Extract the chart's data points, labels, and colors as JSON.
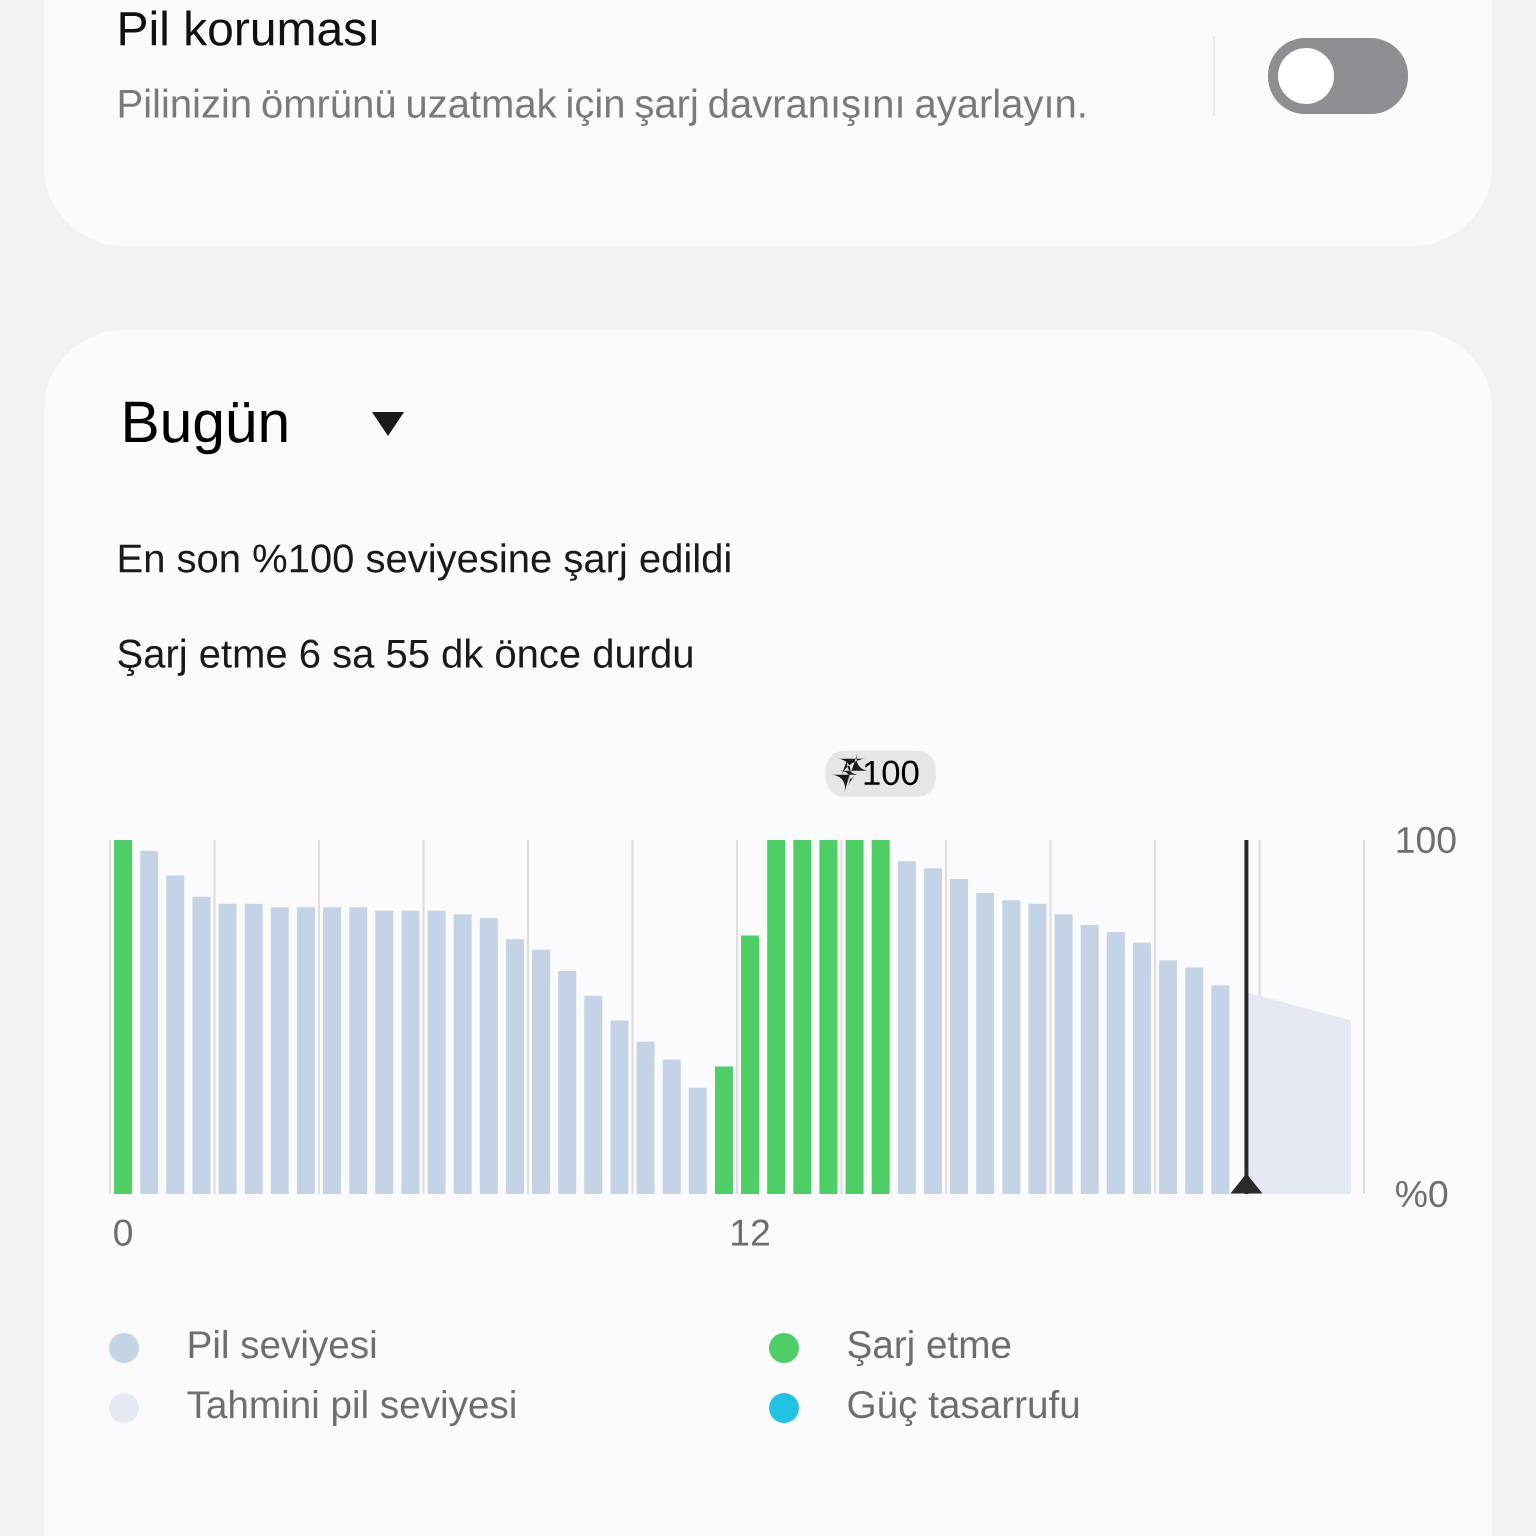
{
  "chart_data": {
    "type": "bar",
    "title": "Bugün",
    "subtitle": "En son %100 seviyesine şarj edildi",
    "annotations": [
      "Pil koruması",
      "Pilinizin ömrünü uzatmak için şarj davranışını ayarlayın.",
      "Şarj etme 6 sa 55 dk önce durdu",
      {
        "text": "100",
        "y": 100
      }
    ],
    "categories": [
      "0",
      null,
      null,
      null,
      null,
      null,
      null,
      null,
      null,
      null,
      null,
      null,
      null,
      null,
      null,
      null,
      null,
      null,
      null,
      null,
      null,
      null,
      null,
      null,
      "12",
      null,
      null,
      null,
      null,
      null,
      null,
      null,
      null,
      null,
      null,
      null,
      null,
      null,
      null,
      null,
      null,
      null,
      null,
      null,
      null,
      null,
      null,
      null
    ],
    "series": [
      {
        "name": "Pil seviyesi",
        "color": "#c5d3e6",
        "values": [
          null,
          97,
          90,
          84,
          82,
          82,
          81,
          81,
          81,
          81,
          80,
          80,
          80,
          79,
          78,
          72,
          69,
          63,
          56,
          49,
          43,
          38,
          30,
          null,
          null,
          null,
          null,
          null,
          null,
          null,
          94,
          92,
          89,
          85,
          83,
          82,
          79,
          76,
          74,
          71,
          66,
          64,
          59,
          null,
          null,
          null,
          null,
          null
        ]
      },
      {
        "name": "Şarj etme",
        "color": "#4fce68",
        "values": [
          100,
          null,
          null,
          null,
          null,
          null,
          null,
          null,
          null,
          null,
          null,
          null,
          null,
          null,
          null,
          null,
          null,
          null,
          null,
          null,
          null,
          null,
          null,
          36,
          73,
          100,
          100,
          100,
          100,
          100,
          null,
          null,
          null,
          null,
          null,
          null,
          null,
          null,
          null,
          null,
          null,
          null,
          null,
          null,
          null,
          null,
          null,
          null
        ]
      },
      {
        "name": "Tahmini pil seviyesi",
        "color": "#e5e9f3",
        "type": "area",
        "values": [
          null,
          null,
          null,
          null,
          null,
          null,
          null,
          null,
          null,
          null,
          null,
          null,
          null,
          null,
          null,
          null,
          null,
          null,
          null,
          null,
          null,
          null,
          null,
          null,
          null,
          null,
          null,
          null,
          null,
          null,
          null,
          null,
          null,
          null,
          null,
          null,
          null,
          null,
          null,
          null,
          null,
          null,
          null,
          57,
          55,
          53,
          51,
          49
        ]
      },
      {
        "name": "Güç tasarrufu",
        "color": "#22c3e2",
        "values": [
          null,
          null,
          null,
          null,
          null,
          null,
          null,
          null,
          null,
          null,
          null,
          null,
          null,
          null,
          null,
          null,
          null,
          null,
          null,
          null,
          null,
          null,
          null,
          null,
          null,
          null,
          null,
          null,
          null,
          null,
          null,
          null,
          null,
          null,
          null,
          null,
          null,
          null,
          null,
          null,
          null,
          null,
          null,
          null,
          null,
          null,
          null,
          null
        ]
      }
    ],
    "ylim": [
      0,
      100
    ],
    "yticks": [
      {
        "value": 0,
        "label": "%0"
      },
      100
    ],
    "grid": "x",
    "legend": "bottom"
  }
}
